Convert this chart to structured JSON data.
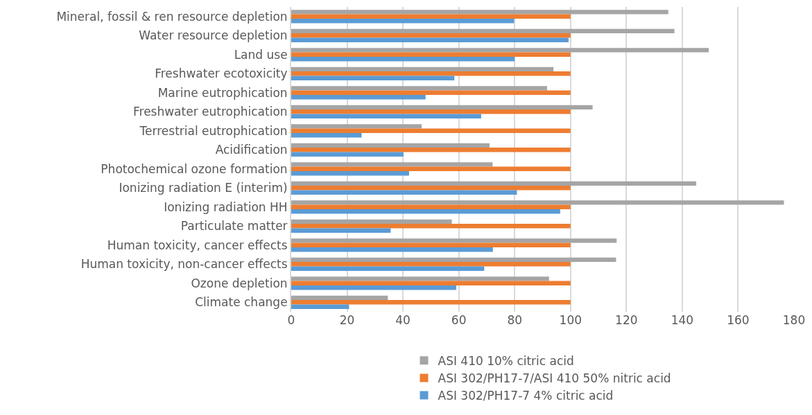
{
  "chart_data": {
    "type": "bar",
    "orientation": "horizontal",
    "categories": [
      "Mineral, fossil & ren resource depletion",
      "Water resource depletion",
      "Land use",
      "Freshwater ecotoxicity",
      "Marine eutrophication",
      "Freshwater eutrophication",
      "Terrestrial eutrophication",
      "Acidification",
      "Photochemical ozone formation",
      "Ionizing radiation E (interim)",
      "Ionizing radiation HH",
      "Particulate matter",
      "Human toxicity, cancer effects",
      "Human toxicity, non-cancer effects",
      "Ozone depletion",
      "Climate change"
    ],
    "series": [
      {
        "name": "ASI 410 10% citric acid",
        "color": "#a5a5a5",
        "values": [
          135,
          137.2,
          149.5,
          93.9,
          91.6,
          107.9,
          46.7,
          71,
          72.1,
          145,
          176.4,
          57.5,
          116.5,
          116.3,
          92.3,
          34.6
        ]
      },
      {
        "name": "ASI 302/PH17-7/ASI 410 50% nitric acid",
        "color": "#ed7d31",
        "values": [
          100,
          100,
          100,
          100,
          100,
          100,
          100,
          100,
          100,
          100,
          100,
          100,
          100,
          100,
          100,
          100
        ]
      },
      {
        "name": "ASI 302/PH17-7 4% citric acid",
        "color": "#5b9bd5",
        "values": [
          79.8,
          99.3,
          80,
          58.4,
          48.1,
          68,
          25.2,
          40.2,
          42.2,
          80.8,
          96.3,
          35.6,
          72.2,
          69.1,
          59.1,
          20.7
        ]
      }
    ],
    "xlim": [
      0,
      180
    ],
    "xticks": [
      0,
      20,
      40,
      60,
      80,
      100,
      120,
      140,
      160,
      180
    ],
    "grid": "x",
    "legend": "bottom"
  }
}
